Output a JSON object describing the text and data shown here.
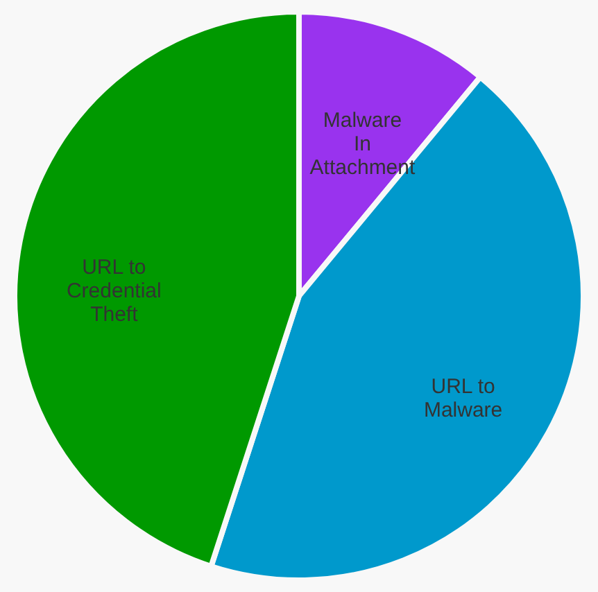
{
  "chart_data": {
    "type": "pie",
    "categories": [
      "Malware\nIn\nAttachment",
      "URL to\nMalware",
      "URL to\nCredential\nTheft"
    ],
    "values": [
      11,
      44,
      45
    ],
    "colors": [
      "#9933ee",
      "#0099cc",
      "#009900"
    ]
  }
}
